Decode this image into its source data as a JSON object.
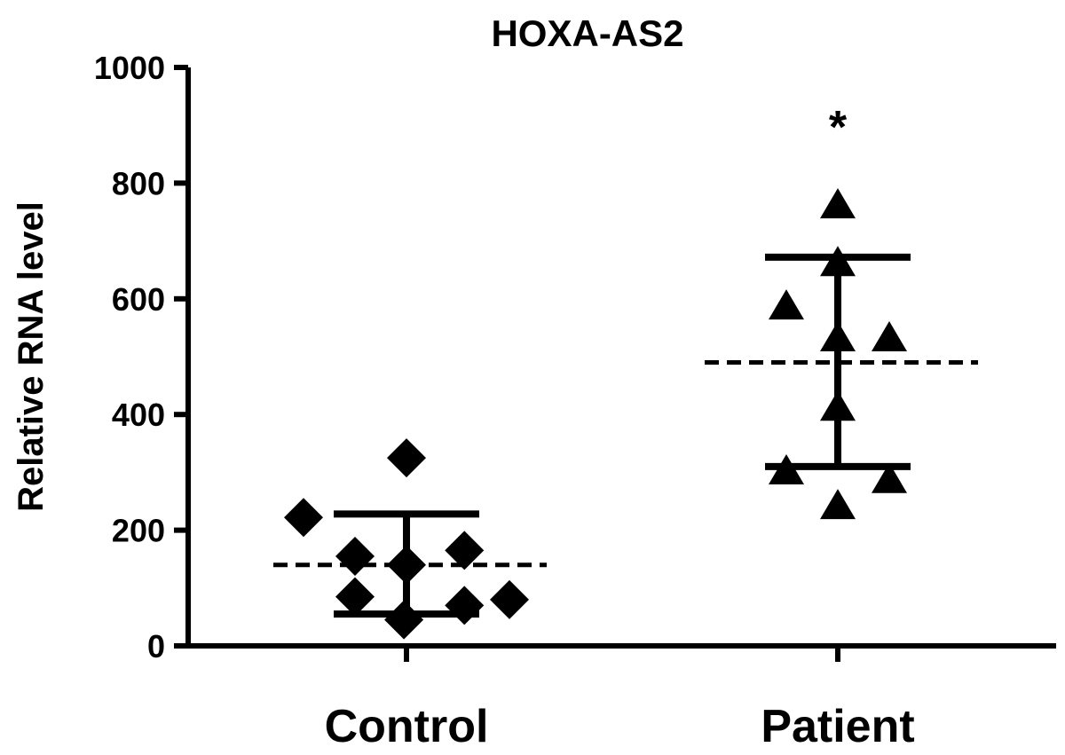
{
  "chart_data": {
    "type": "scatter",
    "title": "HOXA-AS2",
    "xlabel": "",
    "ylabel": "Relative RNA level",
    "ylim": [
      0,
      1000
    ],
    "yticks": [
      "0",
      "200",
      "400",
      "600",
      "800",
      "1000"
    ],
    "categories": [
      "Control",
      "Patient"
    ],
    "grid": false,
    "legend": "none",
    "series": [
      {
        "category": "Control",
        "marker": "diamond",
        "color": "#000000",
        "points": [
          {
            "x": "Control",
            "y": 325,
            "jitter": 0.0
          },
          {
            "x": "Control",
            "y": 222,
            "jitter": -0.8
          },
          {
            "x": "Control",
            "y": 155,
            "jitter": -0.4
          },
          {
            "x": "Control",
            "y": 165,
            "jitter": 0.45
          },
          {
            "x": "Control",
            "y": 140,
            "jitter": 0.0
          },
          {
            "x": "Control",
            "y": 85,
            "jitter": -0.4
          },
          {
            "x": "Control",
            "y": 70,
            "jitter": 0.45
          },
          {
            "x": "Control",
            "y": 80,
            "jitter": 0.8
          },
          {
            "x": "Control",
            "y": 45,
            "jitter": -0.02
          }
        ],
        "mean": 140,
        "sd_upper": 228,
        "sd_lower": 55
      },
      {
        "category": "Patient",
        "marker": "triangle",
        "color": "#000000",
        "points": [
          {
            "x": "Patient",
            "y": 760,
            "jitter": 0.0
          },
          {
            "x": "Patient",
            "y": 660,
            "jitter": 0.0
          },
          {
            "x": "Patient",
            "y": 585,
            "jitter": -0.4
          },
          {
            "x": "Patient",
            "y": 530,
            "jitter": 0.0
          },
          {
            "x": "Patient",
            "y": 530,
            "jitter": 0.4
          },
          {
            "x": "Patient",
            "y": 410,
            "jitter": 0.0
          },
          {
            "x": "Patient",
            "y": 300,
            "jitter": -0.4
          },
          {
            "x": "Patient",
            "y": 285,
            "jitter": 0.4
          },
          {
            "x": "Patient",
            "y": 240,
            "jitter": 0.0
          }
        ],
        "mean": 490,
        "sd_upper": 672,
        "sd_lower": 310
      }
    ],
    "annotations": [
      {
        "text": "*",
        "category": "Patient",
        "y": 900
      }
    ]
  }
}
